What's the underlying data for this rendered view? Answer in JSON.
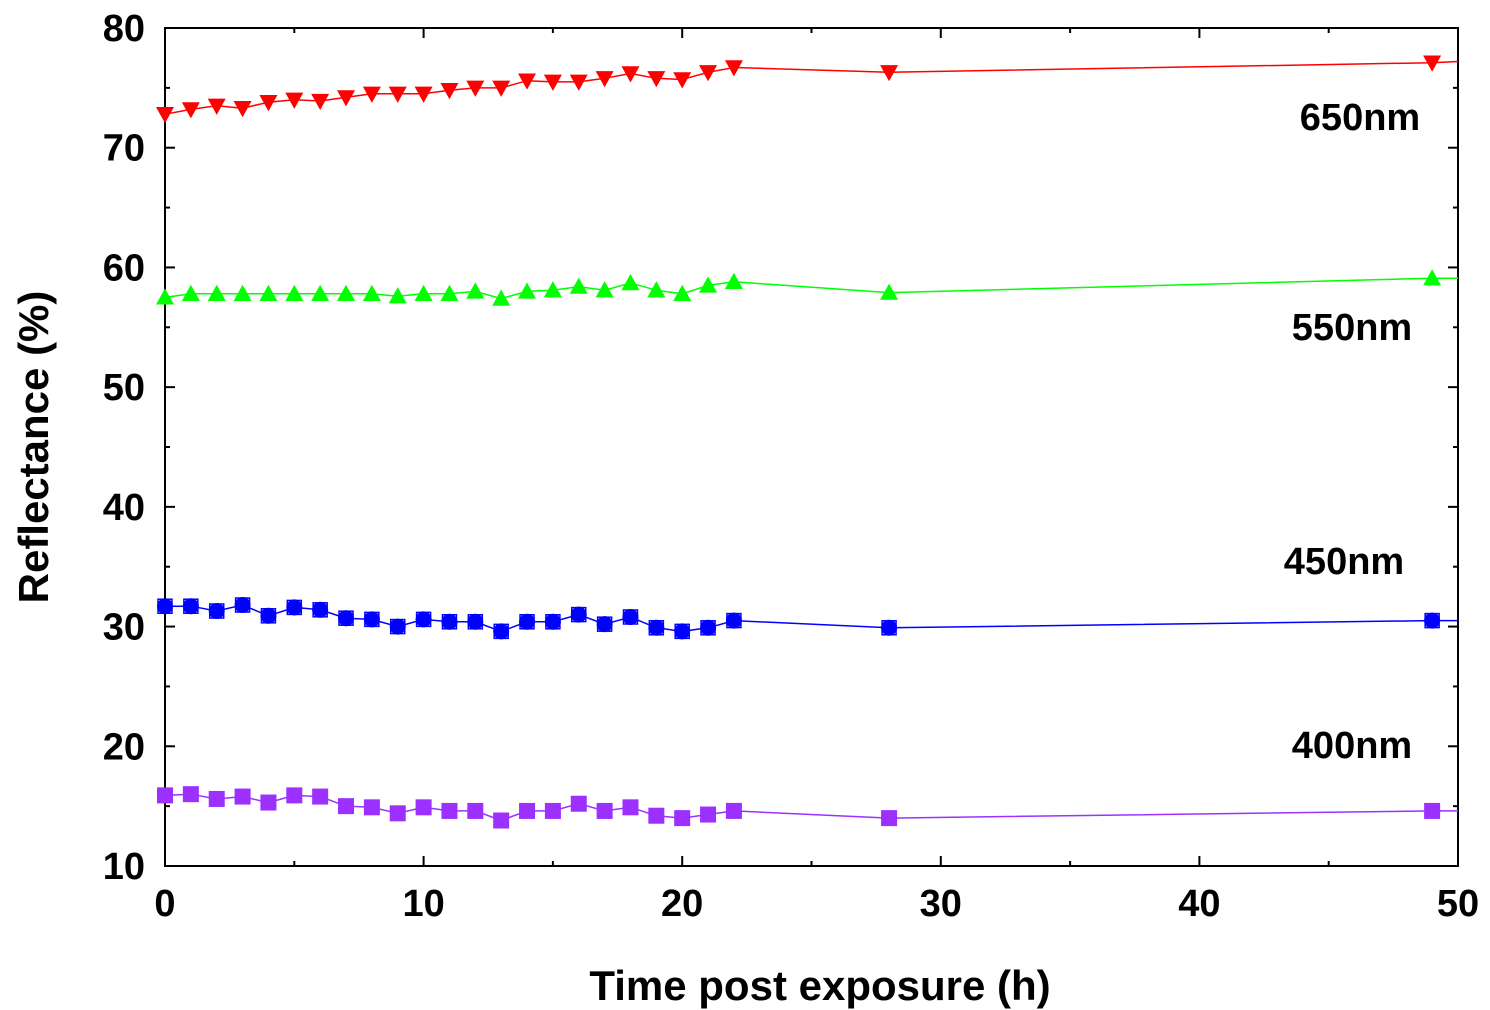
{
  "chart_data": {
    "type": "line",
    "xlabel": "Time post exposure (h)",
    "ylabel": "Reflectance (%)",
    "xlim": [
      0,
      50
    ],
    "ylim": [
      10,
      80
    ],
    "x_ticks": [
      0,
      10,
      20,
      30,
      40,
      50
    ],
    "y_ticks": [
      10,
      20,
      30,
      40,
      50,
      60,
      70,
      80
    ],
    "grid": false,
    "series": [
      {
        "name": "650nm",
        "color": "#ff0000",
        "marker": "triangle-down",
        "x": [
          0,
          1,
          2,
          3,
          4,
          5,
          6,
          7,
          8,
          9,
          10,
          11,
          12,
          13,
          14,
          15,
          16,
          17,
          18,
          19,
          20,
          21,
          22,
          28,
          49,
          50
        ],
        "y": [
          72.8,
          73.2,
          73.5,
          73.3,
          73.8,
          74.0,
          73.9,
          74.2,
          74.5,
          74.5,
          74.5,
          74.8,
          75.0,
          75.0,
          75.6,
          75.5,
          75.5,
          75.8,
          76.2,
          75.8,
          75.7,
          76.3,
          76.7,
          76.3,
          77.1,
          77.2
        ]
      },
      {
        "name": "550nm",
        "color": "#00ff00",
        "marker": "triangle-up",
        "x": [
          0,
          1,
          2,
          3,
          4,
          5,
          6,
          7,
          8,
          9,
          10,
          11,
          12,
          13,
          14,
          15,
          16,
          17,
          18,
          19,
          20,
          21,
          22,
          28,
          49,
          50
        ],
        "y": [
          57.5,
          57.8,
          57.8,
          57.8,
          57.8,
          57.8,
          57.8,
          57.8,
          57.8,
          57.6,
          57.8,
          57.8,
          58.0,
          57.4,
          58.0,
          58.1,
          58.4,
          58.1,
          58.7,
          58.1,
          57.8,
          58.5,
          58.8,
          57.9,
          59.1,
          59.1
        ]
      },
      {
        "name": "450nm",
        "color": "#0000ff",
        "marker": "circle",
        "x": [
          0,
          1,
          2,
          3,
          4,
          5,
          6,
          7,
          8,
          9,
          10,
          11,
          12,
          13,
          14,
          15,
          16,
          17,
          18,
          19,
          20,
          21,
          22,
          28,
          49,
          50
        ],
        "y": [
          31.7,
          31.7,
          31.3,
          31.8,
          30.9,
          31.6,
          31.4,
          30.7,
          30.6,
          30.0,
          30.6,
          30.4,
          30.4,
          29.6,
          30.4,
          30.4,
          31.0,
          30.2,
          30.8,
          29.9,
          29.6,
          29.9,
          30.5,
          29.9,
          30.5,
          30.5
        ]
      },
      {
        "name": "400nm",
        "color": "#9b30ff",
        "marker": "square",
        "x": [
          0,
          1,
          2,
          3,
          4,
          5,
          6,
          7,
          8,
          9,
          10,
          11,
          12,
          13,
          14,
          15,
          16,
          17,
          18,
          19,
          20,
          21,
          22,
          28,
          49,
          50
        ],
        "y": [
          15.9,
          16.0,
          15.6,
          15.8,
          15.3,
          15.9,
          15.8,
          15.0,
          14.9,
          14.4,
          14.9,
          14.6,
          14.6,
          13.8,
          14.6,
          14.6,
          15.2,
          14.6,
          14.9,
          14.2,
          14.0,
          14.3,
          14.6,
          14.0,
          14.6,
          14.6
        ]
      }
    ]
  }
}
